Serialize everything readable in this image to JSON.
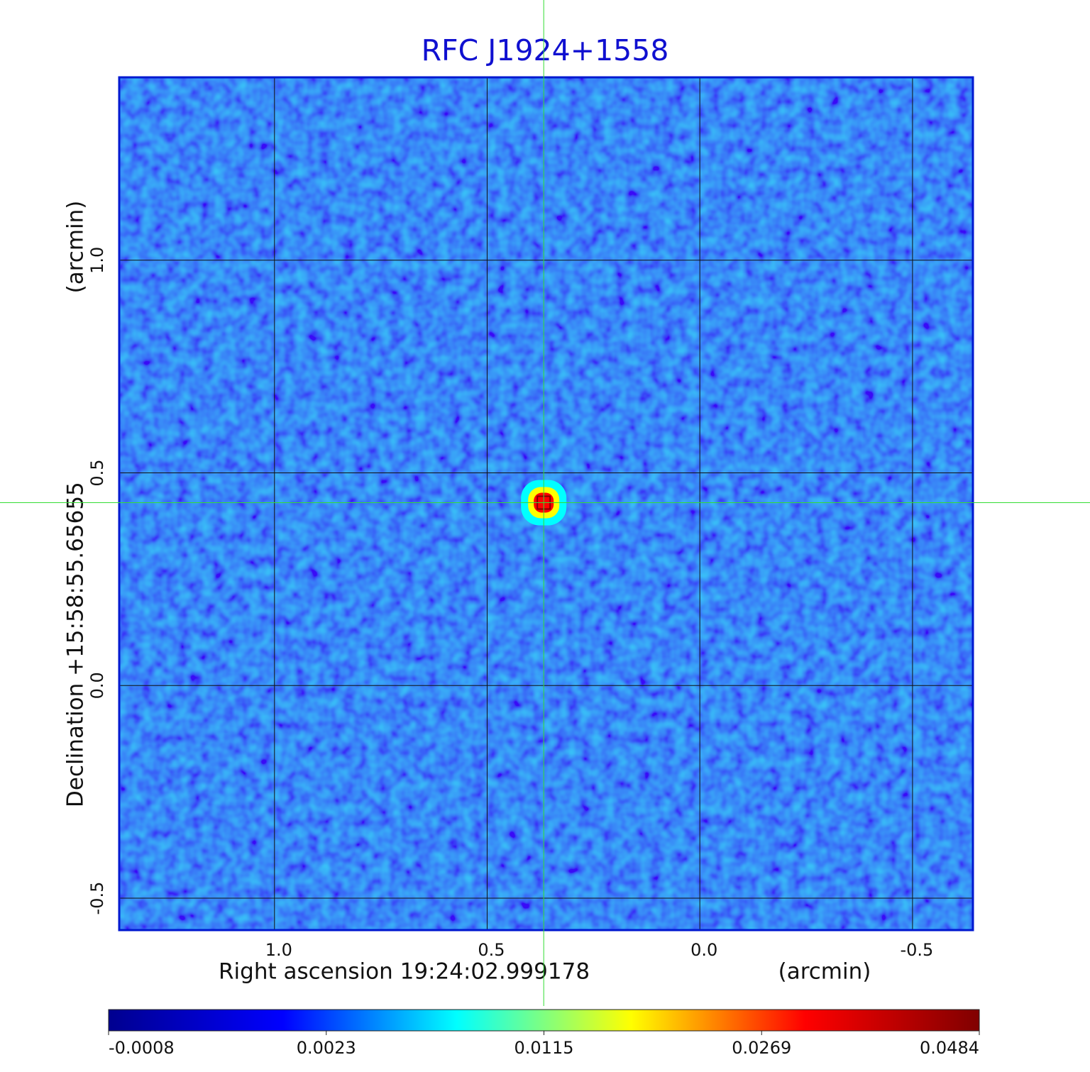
{
  "chart_data": {
    "type": "image",
    "title": "RFC J1924+1558",
    "x_label": "Right ascension  19:24:02.999178",
    "x_unit": "(arcmin)",
    "y_label": "Declination  +15:58:55.65655",
    "y_unit": "(arcmin)",
    "xlim": [
      1.365,
      -0.642
    ],
    "ylim": [
      -0.575,
      1.43
    ],
    "xticks": [
      {
        "value": 1,
        "label": "1.0"
      },
      0.5,
      {
        "value": 0,
        "label": "0.0"
      },
      -0.5
    ],
    "yticks": [
      -0.5,
      {
        "value": 0,
        "label": "0.0"
      },
      0.5,
      {
        "value": 1,
        "label": "1.0"
      }
    ],
    "grid": true,
    "crosshair": {
      "x": 0.367,
      "y": 0.43,
      "color": "#33dd33"
    },
    "source": {
      "x": 0.367,
      "y": 0.43,
      "peak": 0.0484
    },
    "colorbar_ticks": [
      -0.0008,
      0.0023,
      0.0115,
      0.0269,
      0.0484
    ],
    "colormap": [
      "#00008f",
      "#0000ff",
      "#00ffff",
      "#ffff00",
      "#ff0000",
      "#800000"
    ]
  }
}
